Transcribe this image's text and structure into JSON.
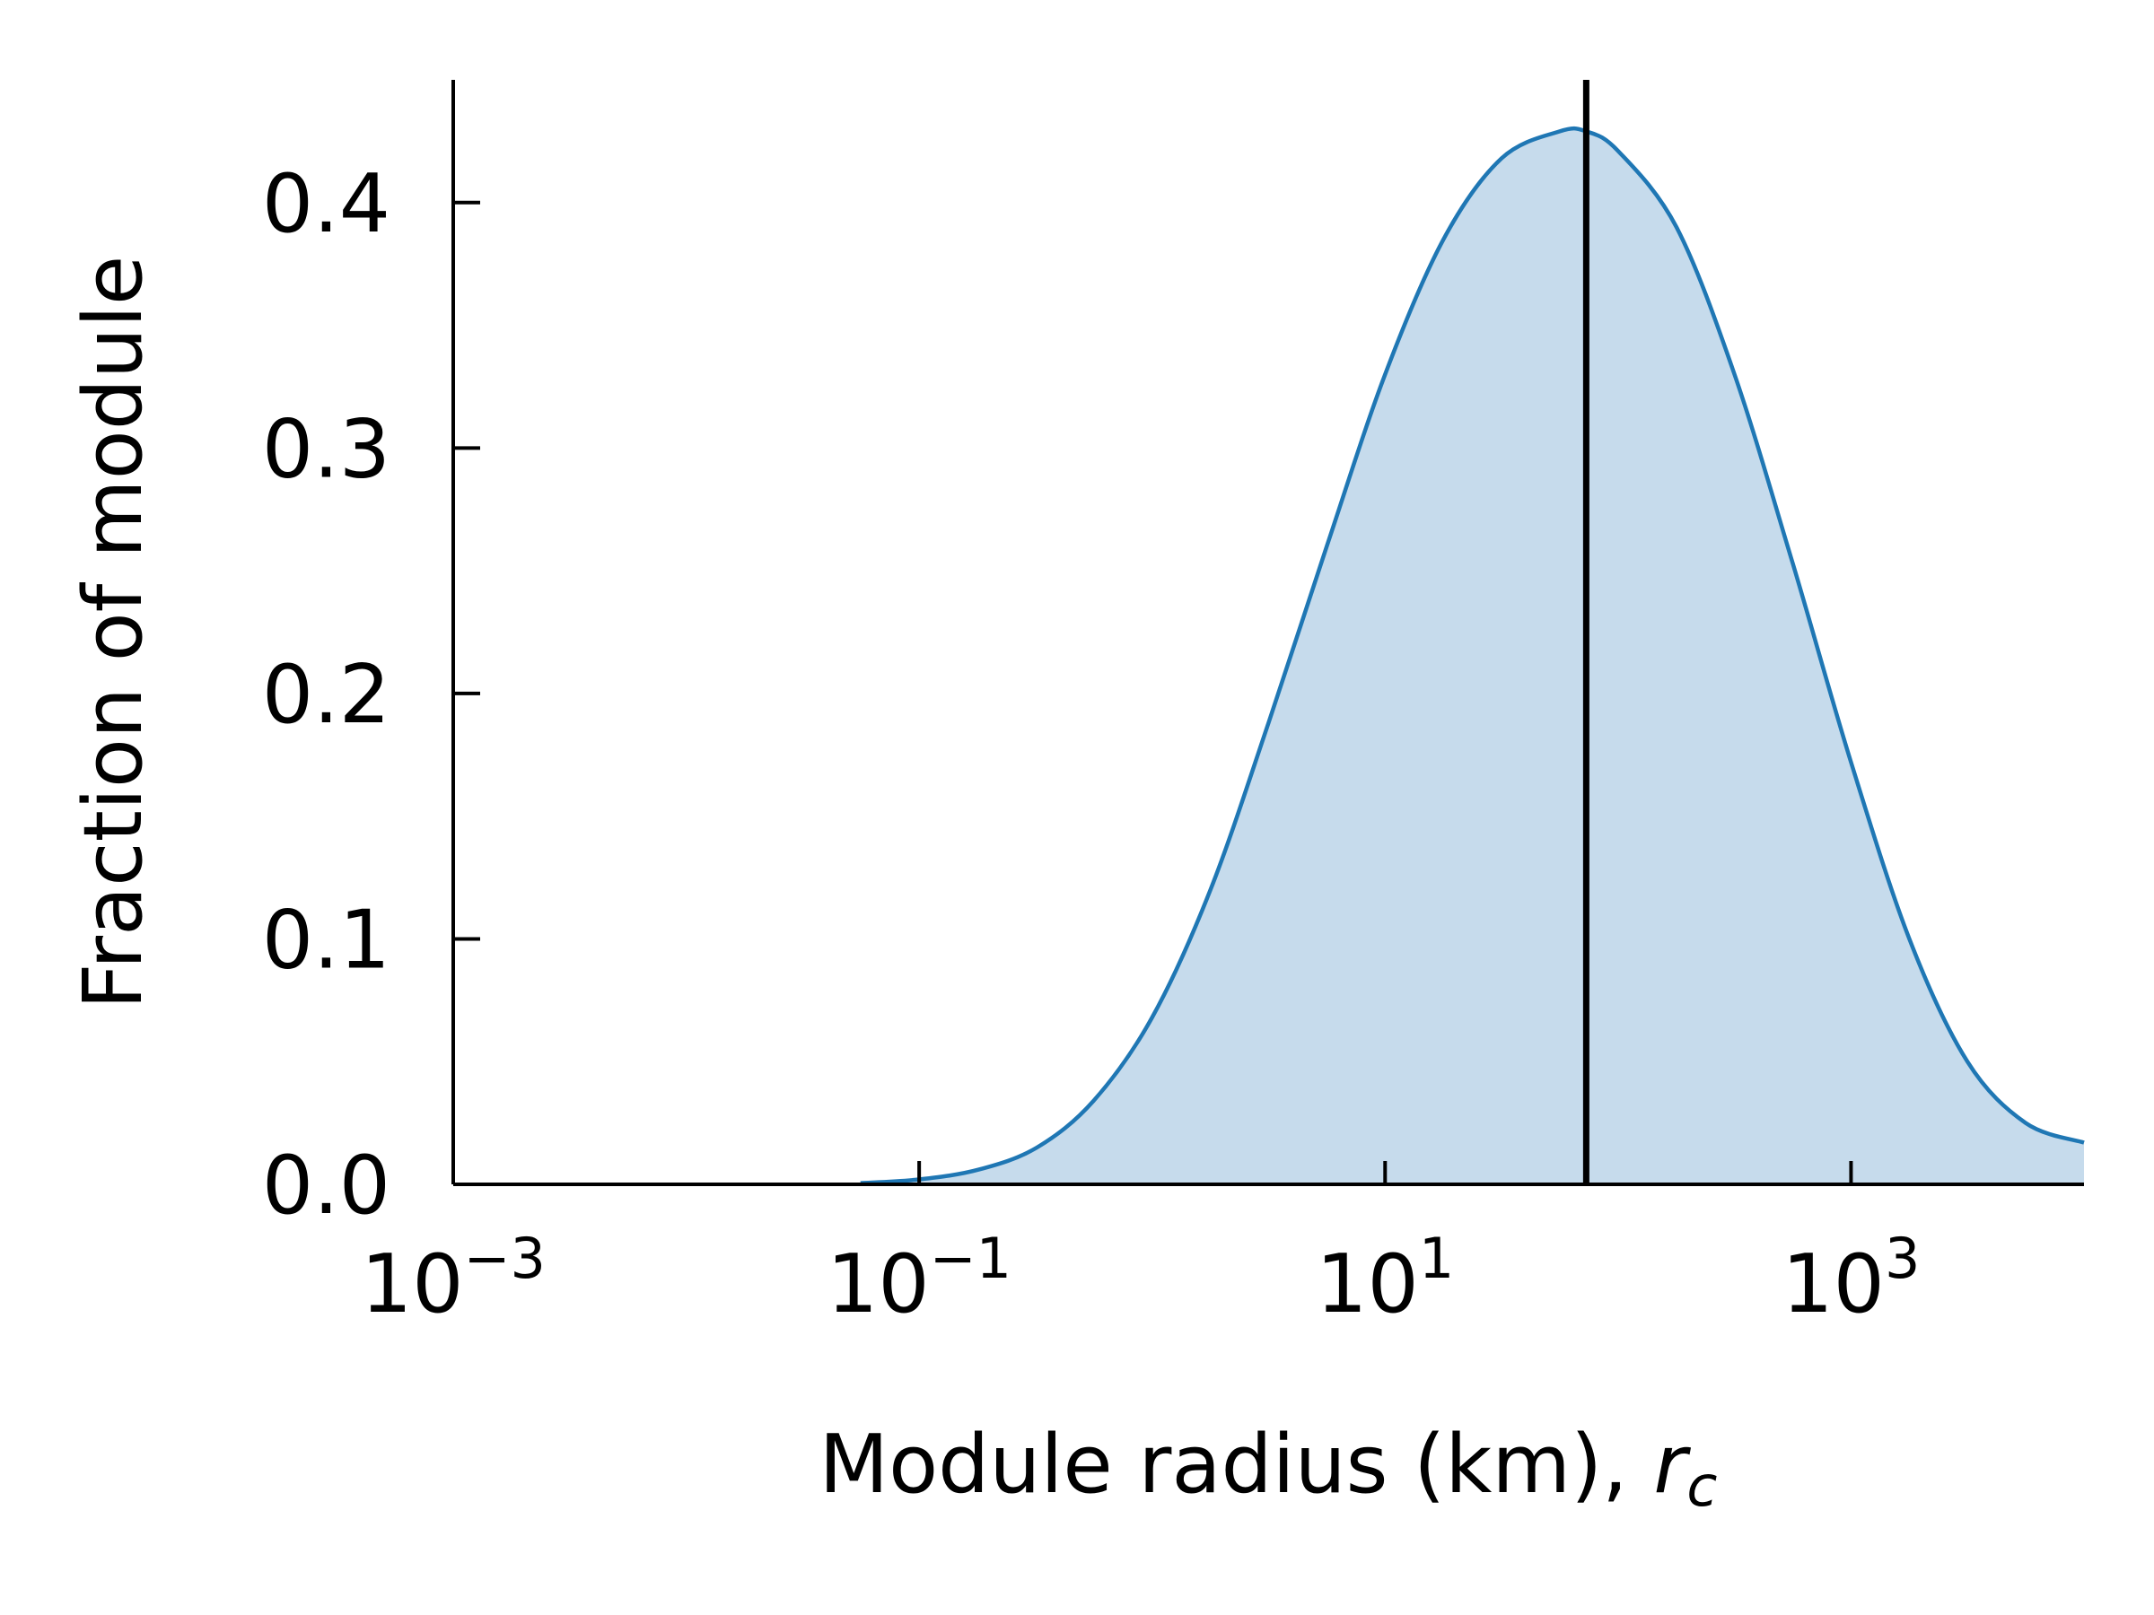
{
  "chart_data": {
    "type": "area",
    "xscale": "log",
    "xlim": [
      0.001,
      10000
    ],
    "ylim": [
      0.0,
      0.45
    ],
    "xlabel": "Module radius (km), ",
    "xlabel_symbol": "r",
    "xlabel_subscript": "c",
    "ylabel": "Fraction of module",
    "x_ticks": [
      {
        "value": 0.001,
        "base": "10",
        "exp": "−3"
      },
      {
        "value": 0.1,
        "base": "10",
        "exp": "−1"
      },
      {
        "value": 10,
        "base": "10",
        "exp": "1"
      },
      {
        "value": 1000,
        "base": "10",
        "exp": "3"
      }
    ],
    "y_ticks": [
      {
        "value": 0.0,
        "label": "0.0"
      },
      {
        "value": 0.1,
        "label": "0.1"
      },
      {
        "value": 0.2,
        "label": "0.2"
      },
      {
        "value": 0.3,
        "label": "0.3"
      },
      {
        "value": 0.4,
        "label": "0.4"
      }
    ],
    "series": [
      {
        "x": [
          0.056,
          0.1,
          0.18,
          0.32,
          0.56,
          1.0,
          1.78,
          3.16,
          5.62,
          10,
          17.8,
          31.6,
          56.2,
          73,
          100,
          178,
          316,
          562,
          1000,
          1780,
          3160,
          5620,
          10000
        ],
        "y": [
          0.0005,
          0.002,
          0.006,
          0.015,
          0.034,
          0.068,
          0.12,
          0.188,
          0.26,
          0.33,
          0.385,
          0.418,
          0.429,
          0.429,
          0.421,
          0.39,
          0.33,
          0.253,
          0.172,
          0.1,
          0.05,
          0.025,
          0.017
        ],
        "color": "#1f77b4",
        "fill": "#c6dbec"
      }
    ],
    "vline": {
      "x": 73,
      "color": "#000000"
    },
    "grid": false,
    "legend": false
  }
}
